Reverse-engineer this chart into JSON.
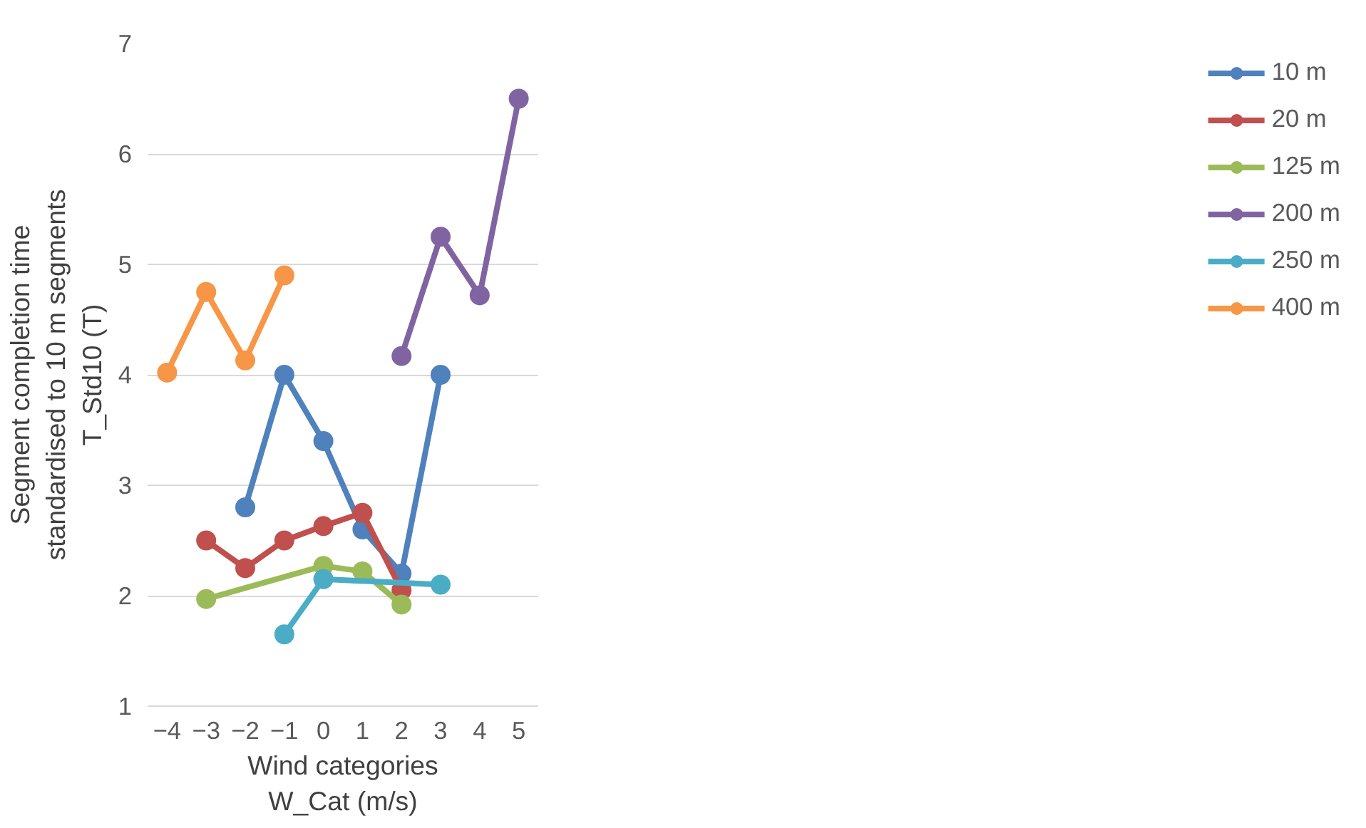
{
  "chart_data": {
    "type": "line",
    "xlabel": "Wind categories\nW_Cat (m/s)",
    "ylabel": "Segment completion time\nstandardised to 10 m segments\nT_Std10 (T)",
    "xlim": [
      -4.5,
      5.5
    ],
    "xticks": [
      -4,
      -3,
      -2,
      -1,
      0,
      1,
      2,
      3,
      4,
      5
    ],
    "ylim": [
      1,
      7
    ],
    "yticks": [
      1,
      2,
      3,
      4,
      5,
      6,
      7
    ],
    "grid": "y",
    "legend": "right",
    "marker": "circle",
    "line_style": "solid",
    "series": [
      {
        "name": "10 m",
        "color": "#4f81bd",
        "x": [
          -2,
          -1,
          0,
          1,
          2,
          3
        ],
        "values": [
          2.8,
          4.0,
          3.4,
          2.6,
          2.2,
          4.0
        ]
      },
      {
        "name": "20 m",
        "color": "#c0504d",
        "x": [
          -3,
          -2,
          -1,
          0,
          1,
          2
        ],
        "values": [
          2.5,
          2.25,
          2.5,
          2.63,
          2.75,
          2.05
        ]
      },
      {
        "name": "125 m",
        "color": "#9bbb59",
        "x": [
          -3,
          0,
          1,
          2
        ],
        "values": [
          1.97,
          2.27,
          2.22,
          1.92
        ]
      },
      {
        "name": "200 m",
        "color": "#8064a2",
        "x": [
          2,
          3,
          4,
          5
        ],
        "values": [
          4.17,
          5.25,
          4.72,
          6.5
        ]
      },
      {
        "name": "250 m",
        "color": "#4bacc6",
        "x": [
          -1,
          0,
          3
        ],
        "values": [
          1.65,
          2.15,
          2.1
        ]
      },
      {
        "name": "400 m",
        "color": "#f79646",
        "x": [
          -4,
          -3,
          -2,
          -1
        ],
        "values": [
          4.02,
          4.75,
          4.13,
          4.9
        ]
      }
    ]
  }
}
